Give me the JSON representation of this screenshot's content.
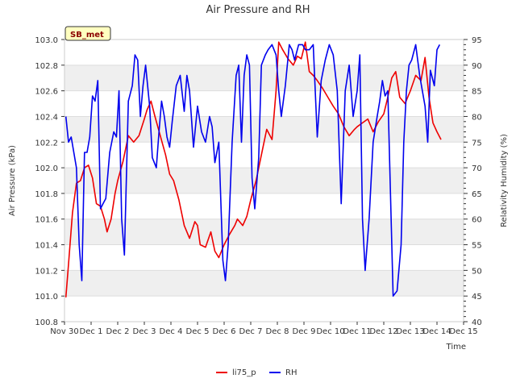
{
  "chart_data": {
    "type": "line",
    "title": "Air Pressure and RH",
    "badge": "SB_met",
    "xlabel": "Time",
    "ylabel_left": "Air Pressure (kPa)",
    "ylabel_right": "Relativity Humidity (%)",
    "xlim": [
      0,
      15
    ],
    "ylim_left": [
      100.8,
      103.0
    ],
    "ylim_right": [
      40,
      95
    ],
    "x_ticks": [
      0,
      1,
      2,
      3,
      4,
      5,
      6,
      7,
      8,
      9,
      10,
      11,
      12,
      13,
      14,
      15
    ],
    "x_tick_labels": [
      "Nov 30",
      "Dec 1",
      "Dec 2",
      "Dec 3",
      "Dec 4",
      "Dec 5",
      "Dec 6",
      "Dec 7",
      "Dec 8",
      "Dec 9",
      "Dec 10",
      "Dec 11",
      "Dec 12",
      "Dec 13",
      "Dec 14",
      "Dec 15"
    ],
    "y_left_ticks": [
      100.8,
      101.0,
      101.2,
      101.4,
      101.6,
      101.8,
      102.0,
      102.2,
      102.4,
      102.6,
      102.8,
      103.0
    ],
    "y_left_tick_labels": [
      "100.8",
      "101.0",
      "101.2",
      "101.4",
      "101.6",
      "101.8",
      "102.0",
      "102.2",
      "102.4",
      "102.6",
      "102.8",
      "103.0"
    ],
    "y_right_ticks": [
      40,
      45,
      50,
      55,
      60,
      65,
      70,
      75,
      80,
      85,
      90,
      95
    ],
    "y_right_tick_labels": [
      "40",
      "45",
      "50",
      "55",
      "60",
      "65",
      "70",
      "75",
      "80",
      "85",
      "90",
      "95"
    ],
    "series": [
      {
        "name": "li75_p",
        "axis": "left",
        "color": "#ee0000",
        "x": [
          0.05,
          0.15,
          0.3,
          0.45,
          0.6,
          0.75,
          0.9,
          1.05,
          1.2,
          1.35,
          1.5,
          1.6,
          1.75,
          1.9,
          2.0,
          2.2,
          2.4,
          2.6,
          2.8,
          3.0,
          3.1,
          3.25,
          3.4,
          3.6,
          3.8,
          3.95,
          4.1,
          4.3,
          4.5,
          4.7,
          4.9,
          5.0,
          5.1,
          5.3,
          5.5,
          5.65,
          5.8,
          6.0,
          6.2,
          6.4,
          6.5,
          6.7,
          6.85,
          7.0,
          7.2,
          7.4,
          7.6,
          7.8,
          7.95,
          8.05,
          8.2,
          8.4,
          8.6,
          8.75,
          8.9,
          9.05,
          9.2,
          9.35,
          9.5,
          9.7,
          9.9,
          10.1,
          10.3,
          10.5,
          10.7,
          10.9,
          11.0,
          11.2,
          11.4,
          11.6,
          11.8,
          12.0,
          12.15,
          12.3,
          12.45,
          12.6,
          12.8,
          13.0,
          13.2,
          13.4,
          13.55,
          13.7,
          13.85,
          14.0,
          14.15
        ],
        "values": [
          100.99,
          101.25,
          101.65,
          101.88,
          101.9,
          102.0,
          102.02,
          101.92,
          101.72,
          101.7,
          101.6,
          101.5,
          101.6,
          101.8,
          101.9,
          102.05,
          102.25,
          102.2,
          102.25,
          102.38,
          102.45,
          102.52,
          102.4,
          102.25,
          102.1,
          101.95,
          101.9,
          101.75,
          101.55,
          101.45,
          101.58,
          101.55,
          101.4,
          101.38,
          101.5,
          101.35,
          101.3,
          101.4,
          101.48,
          101.55,
          101.6,
          101.55,
          101.62,
          101.75,
          101.9,
          102.1,
          102.3,
          102.22,
          102.6,
          102.98,
          102.92,
          102.85,
          102.8,
          102.87,
          102.85,
          102.98,
          102.75,
          102.72,
          102.68,
          102.62,
          102.55,
          102.48,
          102.42,
          102.32,
          102.25,
          102.3,
          102.32,
          102.35,
          102.38,
          102.28,
          102.36,
          102.42,
          102.55,
          102.7,
          102.75,
          102.55,
          102.5,
          102.6,
          102.72,
          102.68,
          102.86,
          102.55,
          102.35,
          102.28,
          102.22
        ]
      },
      {
        "name": "RH",
        "axis": "right",
        "color": "#0000ee",
        "x": [
          0.05,
          0.15,
          0.25,
          0.45,
          0.55,
          0.65,
          0.75,
          0.85,
          0.95,
          1.05,
          1.15,
          1.25,
          1.35,
          1.45,
          1.55,
          1.7,
          1.85,
          1.95,
          2.05,
          2.15,
          2.25,
          2.4,
          2.55,
          2.65,
          2.75,
          2.85,
          2.95,
          3.05,
          3.2,
          3.3,
          3.45,
          3.55,
          3.65,
          3.75,
          3.85,
          3.95,
          4.05,
          4.2,
          4.35,
          4.5,
          4.6,
          4.7,
          4.85,
          5.0,
          5.15,
          5.3,
          5.45,
          5.55,
          5.65,
          5.8,
          5.95,
          6.05,
          6.15,
          6.3,
          6.45,
          6.55,
          6.65,
          6.75,
          6.85,
          6.95,
          7.05,
          7.15,
          7.3,
          7.4,
          7.55,
          7.65,
          7.8,
          7.95,
          8.05,
          8.15,
          8.3,
          8.45,
          8.55,
          8.65,
          8.8,
          8.95,
          9.05,
          9.2,
          9.35,
          9.5,
          9.65,
          9.8,
          9.95,
          10.1,
          10.25,
          10.4,
          10.55,
          10.7,
          10.85,
          11.0,
          11.1,
          11.2,
          11.3,
          11.45,
          11.6,
          11.75,
          11.85,
          11.95,
          12.05,
          12.15,
          12.25,
          12.35,
          12.5,
          12.65,
          12.75,
          12.85,
          12.95,
          13.05,
          13.2,
          13.35,
          13.55,
          13.65,
          13.75,
          13.9,
          14.0,
          14.1
        ],
        "values": [
          80,
          75,
          76,
          70,
          55,
          48,
          73,
          73,
          76,
          84,
          83,
          87,
          62,
          63,
          64,
          73,
          77,
          76,
          85,
          60,
          53,
          83,
          86,
          92,
          91,
          80,
          86,
          90,
          82,
          72,
          70,
          77,
          83,
          80,
          76,
          74,
          79,
          86,
          88,
          81,
          88,
          85,
          74,
          82,
          77,
          75,
          80,
          78,
          71,
          75,
          52,
          48,
          55,
          75,
          88,
          90,
          75,
          88,
          92,
          90,
          68,
          62,
          72,
          90,
          92,
          93,
          94,
          92,
          85,
          80,
          86,
          94,
          93,
          91,
          94,
          94,
          93,
          93,
          94,
          76,
          87,
          91,
          94,
          92,
          85,
          63,
          85,
          90,
          80,
          85,
          92,
          60,
          50,
          60,
          75,
          80,
          83,
          87,
          84,
          85,
          65,
          45,
          46,
          55,
          75,
          85,
          90,
          91,
          94,
          88,
          82,
          75,
          89,
          86,
          93,
          94
        ]
      }
    ],
    "legend": [
      "li75_p",
      "RH"
    ],
    "legend_position": "bottom-center",
    "grid": true
  }
}
